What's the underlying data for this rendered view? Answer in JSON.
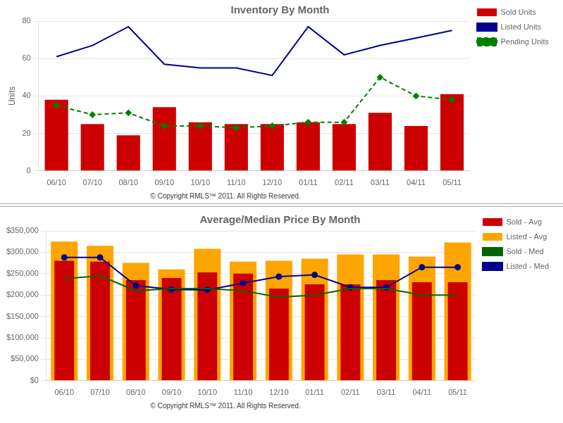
{
  "chart_data": [
    {
      "type": "bar",
      "title": "Inventory By Month",
      "ylabel": "Units",
      "categories": [
        "06/10",
        "07/10",
        "08/10",
        "09/10",
        "10/10",
        "11/10",
        "12/10",
        "01/11",
        "02/11",
        "03/11",
        "04/11",
        "05/11"
      ],
      "series": [
        {
          "name": "Sold Units",
          "type": "bar",
          "color": "#cc0000",
          "values": [
            38,
            25,
            19,
            34,
            26,
            25,
            25,
            26,
            25,
            31,
            24,
            41
          ]
        },
        {
          "name": "Listed Units",
          "type": "line",
          "color": "#00008b",
          "marker": "none",
          "line_style": "solid",
          "values": [
            61,
            67,
            77,
            57,
            55,
            55,
            51,
            77,
            62,
            67,
            71,
            75
          ]
        },
        {
          "name": "Pending Units",
          "type": "line",
          "color": "#008000",
          "marker": "diamond",
          "line_style": "dashed",
          "values": [
            35,
            30,
            31,
            24,
            24,
            23,
            24,
            26,
            26,
            50,
            40,
            38
          ]
        }
      ],
      "ylim": [
        0,
        80
      ],
      "yticks": [
        0,
        20,
        40,
        60,
        80
      ],
      "grid": true,
      "legend": "right",
      "annotation": "© Copyright RMLS™ 2011.  All Rights Reserved."
    },
    {
      "type": "bar",
      "title": "Average/Median Price By Month",
      "categories": [
        "06/10",
        "07/10",
        "08/10",
        "09/10",
        "10/10",
        "11/10",
        "12/10",
        "01/11",
        "02/11",
        "03/11",
        "04/11",
        "05/11"
      ],
      "series": [
        {
          "name": "Sold - Avg",
          "type": "bar",
          "color": "#cc0000",
          "values": [
            280000,
            278000,
            235000,
            240000,
            253000,
            250000,
            215000,
            225000,
            225000,
            235000,
            230000,
            230000
          ]
        },
        {
          "name": "Listed - Avg",
          "type": "bar",
          "color": "#ffa500",
          "values": [
            325000,
            315000,
            275000,
            260000,
            308000,
            278000,
            280000,
            285000,
            295000,
            295000,
            290000,
            323000
          ]
        },
        {
          "name": "Sold - Med",
          "type": "line",
          "color": "#006400",
          "marker": "none",
          "line_style": "solid",
          "values": [
            238000,
            245000,
            210000,
            215000,
            215000,
            210000,
            195000,
            200000,
            215000,
            215000,
            200000,
            200000
          ]
        },
        {
          "name": "Listed - Med",
          "type": "line",
          "color": "#00008b",
          "marker": "circle",
          "line_style": "solid",
          "values": [
            288000,
            288000,
            222000,
            213000,
            212000,
            228000,
            243000,
            247000,
            218000,
            218000,
            265000,
            265000
          ]
        }
      ],
      "ylim": [
        0,
        350000
      ],
      "yticks": [
        {
          "value": 0,
          "label": "$0"
        },
        {
          "value": 50000,
          "label": "$50,000"
        },
        {
          "value": 100000,
          "label": "$100,000"
        },
        {
          "value": 150000,
          "label": "$150,000"
        },
        {
          "value": 200000,
          "label": "$200,000"
        },
        {
          "value": 250000,
          "label": "$250,000"
        },
        {
          "value": 300000,
          "label": "$300,000"
        },
        {
          "value": 350000,
          "label": "$350,000"
        }
      ],
      "grid": true,
      "legend": "right",
      "annotation": "© Copyright RMLS™ 2011.  All Rights Reserved."
    }
  ]
}
